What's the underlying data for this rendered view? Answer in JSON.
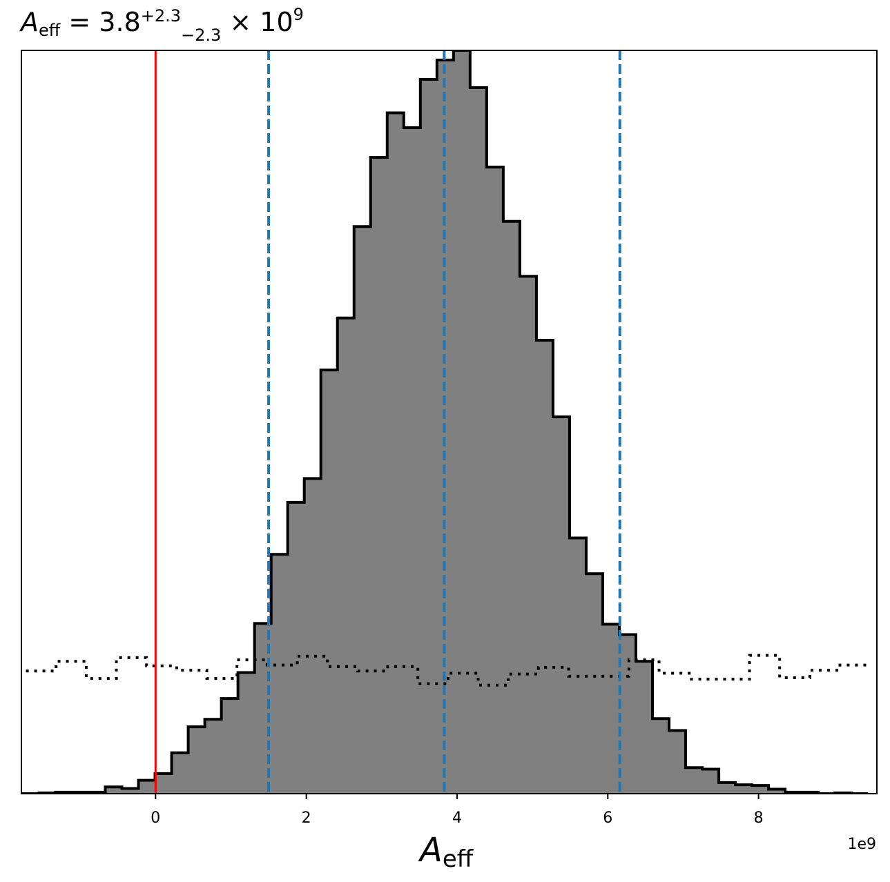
{
  "chart_data": {
    "type": "histogram",
    "title": {
      "symbol": "A",
      "subscript": "eff",
      "equals": " = 3.8",
      "upper_err": "+2.3",
      "lower_err": "−2.3",
      "times": " × 10",
      "exponent": "9"
    },
    "xlabel": {
      "symbol": "A",
      "subscript": "eff"
    },
    "x_offset_text": "1e9",
    "xlim": [
      -1.78,
      9.57
    ],
    "ylim": [
      0,
      1.0
    ],
    "xticks": [
      0,
      2,
      4,
      6,
      8
    ],
    "xtick_labels": [
      "0",
      "2",
      "4",
      "6",
      "8"
    ],
    "posterior_histogram": {
      "fill_color": "#808080",
      "edge_color": "#000000",
      "bin_edges": [
        -1.78,
        -1.547,
        -1.327,
        -1.107,
        -0.887,
        -0.667,
        -0.447,
        -0.227,
        -0.007,
        0.213,
        0.433,
        0.653,
        0.873,
        1.093,
        1.313,
        1.533,
        1.753,
        1.973,
        2.193,
        2.413,
        2.633,
        2.853,
        3.073,
        3.293,
        3.513,
        3.733,
        3.953,
        4.173,
        4.393,
        4.613,
        4.833,
        5.053,
        5.273,
        5.493,
        5.713,
        5.933,
        6.153,
        6.373,
        6.593,
        6.813,
        7.033,
        7.253,
        7.473,
        7.693,
        7.913,
        8.133,
        8.353,
        8.573,
        8.793,
        9.013,
        9.233,
        9.453
      ],
      "values": [
        0.0,
        0.001,
        0.002,
        0.002,
        0.002,
        0.009,
        0.007,
        0.018,
        0.027,
        0.055,
        0.09,
        0.1,
        0.128,
        0.163,
        0.229,
        0.322,
        0.392,
        0.424,
        0.57,
        0.64,
        0.763,
        0.856,
        0.916,
        0.896,
        0.961,
        0.987,
        1.0,
        0.95,
        0.843,
        0.77,
        0.696,
        0.61,
        0.507,
        0.344,
        0.296,
        0.228,
        0.214,
        0.178,
        0.101,
        0.085,
        0.035,
        0.033,
        0.015,
        0.012,
        0.011,
        0.006,
        0.002,
        0.002,
        0.0,
        0.001,
        0.0
      ]
    },
    "prior_histogram": {
      "line_style": "dotted",
      "edge_color": "#000000",
      "bin_edges": [
        -1.72,
        -1.32,
        -0.92,
        -0.52,
        -0.12,
        0.28,
        0.68,
        1.08,
        1.48,
        1.88,
        2.28,
        2.68,
        3.08,
        3.48,
        3.88,
        4.28,
        4.68,
        5.08,
        5.48,
        5.88,
        6.28,
        6.68,
        7.08,
        7.48,
        7.88,
        8.28,
        8.68,
        9.08,
        9.48
      ],
      "values": [
        0.165,
        0.178,
        0.155,
        0.183,
        0.172,
        0.166,
        0.155,
        0.18,
        0.173,
        0.185,
        0.171,
        0.165,
        0.171,
        0.148,
        0.162,
        0.146,
        0.161,
        0.17,
        0.158,
        0.158,
        0.18,
        0.162,
        0.154,
        0.154,
        0.186,
        0.156,
        0.166,
        0.173
      ]
    },
    "reference_line": {
      "x": 0,
      "color": "#ff0000"
    },
    "quantile_lines": {
      "x": [
        1.5,
        3.83,
        6.16
      ],
      "color": "#1f77b4",
      "style": "dashed"
    },
    "grid": false,
    "legend": "none"
  }
}
